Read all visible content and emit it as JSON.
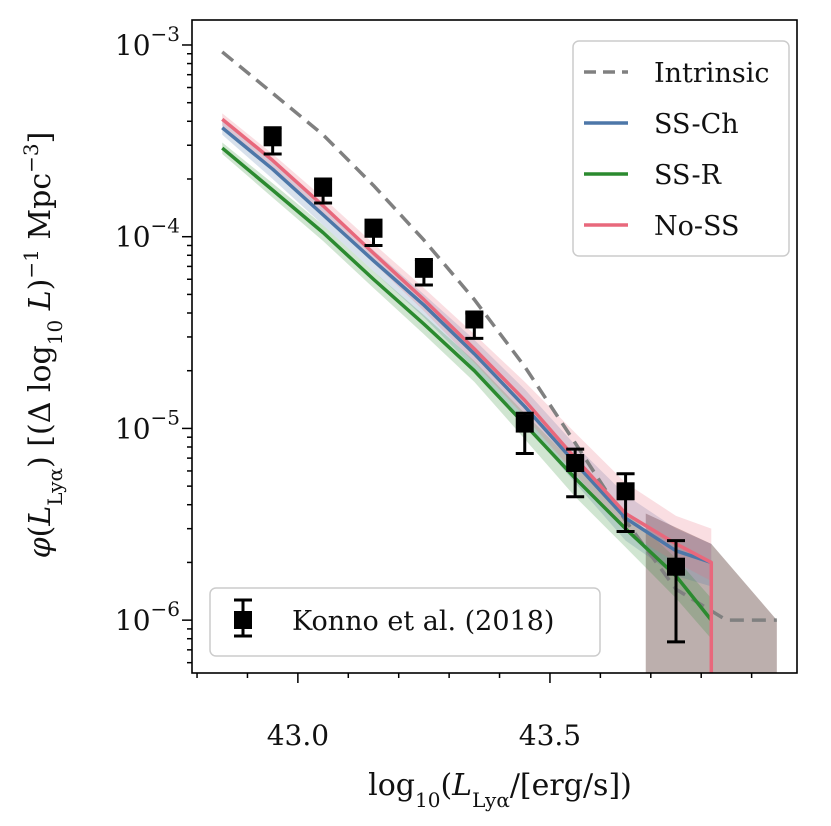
{
  "chart_data": {
    "type": "line",
    "xlabel": "log10(LLyα/[erg/s])",
    "ylabel": "φ(LLyα) [(Δ log10 L)−1 Mpc−3]",
    "xlim": [
      42.79,
      43.99
    ],
    "ylim": [
      5.3e-07,
      0.00135
    ],
    "yscale": "log",
    "xticks": [
      {
        "value": 43.0,
        "label": "43.0"
      },
      {
        "value": 43.5,
        "label": "43.5"
      }
    ],
    "yticks": [
      {
        "value": 0.001,
        "base": "10",
        "exp": "−3"
      },
      {
        "value": 0.0001,
        "base": "10",
        "exp": "−4"
      },
      {
        "value": 1e-05,
        "base": "10",
        "exp": "−5"
      },
      {
        "value": 1e-06,
        "base": "10",
        "exp": "−6"
      }
    ],
    "grid": false,
    "legend_placement": "top-right",
    "series": [
      {
        "name": "Intrinsic",
        "color": "#808080",
        "style": "dashed",
        "x": [
          42.85,
          42.95,
          43.05,
          43.15,
          43.25,
          43.35,
          43.45,
          43.55,
          43.65,
          43.75,
          43.85,
          43.95
        ],
        "y": [
          0.00092,
          0.00056,
          0.00034,
          0.000185,
          9.6e-05,
          4.7e-05,
          2.1e-05,
          8.4e-06,
          3.3e-06,
          1.45e-06,
          1e-06,
          1e-06
        ]
      },
      {
        "name": "SS-Ch",
        "color": "#4d77a8",
        "style": "solid",
        "x": [
          42.85,
          42.95,
          43.05,
          43.15,
          43.25,
          43.35,
          43.45,
          43.55,
          43.65,
          43.75,
          43.82
        ],
        "y": [
          0.00037,
          0.000225,
          0.00013,
          7.5e-05,
          4.4e-05,
          2.45e-05,
          1.3e-05,
          6.6e-06,
          3.4e-06,
          2.3e-06,
          2e-06
        ],
        "band_upper": [
          0.0004,
          0.00025,
          0.000145,
          8.5e-05,
          5e-05,
          2.9e-05,
          1.6e-05,
          8.2e-06,
          4.5e-06,
          3e-06,
          2.5e-06
        ],
        "band_lower": [
          0.00034,
          0.0002,
          0.000115,
          6.6e-05,
          3.8e-05,
          2.05e-05,
          1.05e-05,
          5.2e-06,
          2.6e-06,
          1.7e-06,
          1.5e-06
        ]
      },
      {
        "name": "SS-R",
        "color": "#2b8a2f",
        "style": "solid",
        "x": [
          42.85,
          42.95,
          43.05,
          43.15,
          43.25,
          43.35,
          43.45,
          43.55,
          43.65,
          43.75,
          43.82
        ],
        "y": [
          0.00029,
          0.000175,
          0.000105,
          6e-05,
          3.5e-05,
          2e-05,
          1.05e-05,
          5.5e-06,
          3e-06,
          1.7e-06,
          1e-06
        ],
        "band_upper": [
          0.00031,
          0.00019,
          0.000115,
          6.6e-05,
          3.9e-05,
          2.25e-05,
          1.2e-05,
          6.5e-06,
          3.7e-06,
          2.1e-06,
          1.3e-06
        ],
        "band_lower": [
          0.00027,
          0.00016,
          9.5e-05,
          5.4e-05,
          3.1e-05,
          1.75e-05,
          8.8e-06,
          4.4e-06,
          2.4e-06,
          1.3e-06,
          8e-07
        ]
      },
      {
        "name": "No-SS",
        "color": "#e8687c",
        "style": "solid",
        "x": [
          42.85,
          42.95,
          43.05,
          43.15,
          43.25,
          43.35,
          43.45,
          43.55,
          43.65,
          43.75,
          43.82,
          43.82
        ],
        "y": [
          0.00041,
          0.00025,
          0.000145,
          8.2e-05,
          4.7e-05,
          2.6e-05,
          1.4e-05,
          7e-06,
          3.6e-06,
          2.5e-06,
          2e-06,
          5.3e-07
        ],
        "band_upper": [
          0.00044,
          0.00027,
          0.00016,
          9.2e-05,
          5.4e-05,
          3.1e-05,
          1.75e-05,
          9.5e-06,
          5.2e-06,
          3.5e-06,
          3e-06,
          3e-06
        ],
        "band_lower": [
          0.00038,
          0.00023,
          0.00013,
          7.3e-05,
          4.1e-05,
          2.2e-05,
          1.15e-05,
          5.8e-06,
          2.9e-06,
          2e-06,
          1.6e-06,
          1.6e-06
        ]
      },
      {
        "name": "Konno et al. (2018)",
        "color": "#000000",
        "style": "errorbar",
        "x": [
          42.95,
          43.05,
          43.15,
          43.25,
          43.35,
          43.45,
          43.55,
          43.65,
          43.75
        ],
        "y": [
          0.00033,
          0.00018,
          0.00011,
          6.8e-05,
          3.7e-05,
          1.06e-05,
          6.6e-06,
          4.7e-06,
          1.9e-06
        ],
        "yerr_low": [
          0.00027,
          0.00015,
          9e-05,
          5.6e-05,
          2.95e-05,
          7.4e-06,
          4.4e-06,
          2.9e-06,
          7.7e-07
        ],
        "yerr_high": [
          0.00037,
          0.0002,
          0.000122,
          7.6e-05,
          4e-05,
          1.2e-05,
          7.8e-06,
          5.8e-06,
          2.6e-06
        ]
      }
    ],
    "shaded_region": {
      "color": "#b8aba9",
      "x": [
        43.69,
        43.82,
        43.95
      ],
      "y_top": [
        3.6e-06,
        2.5e-06,
        1e-06
      ],
      "y_bottom": 5.3e-07
    }
  }
}
